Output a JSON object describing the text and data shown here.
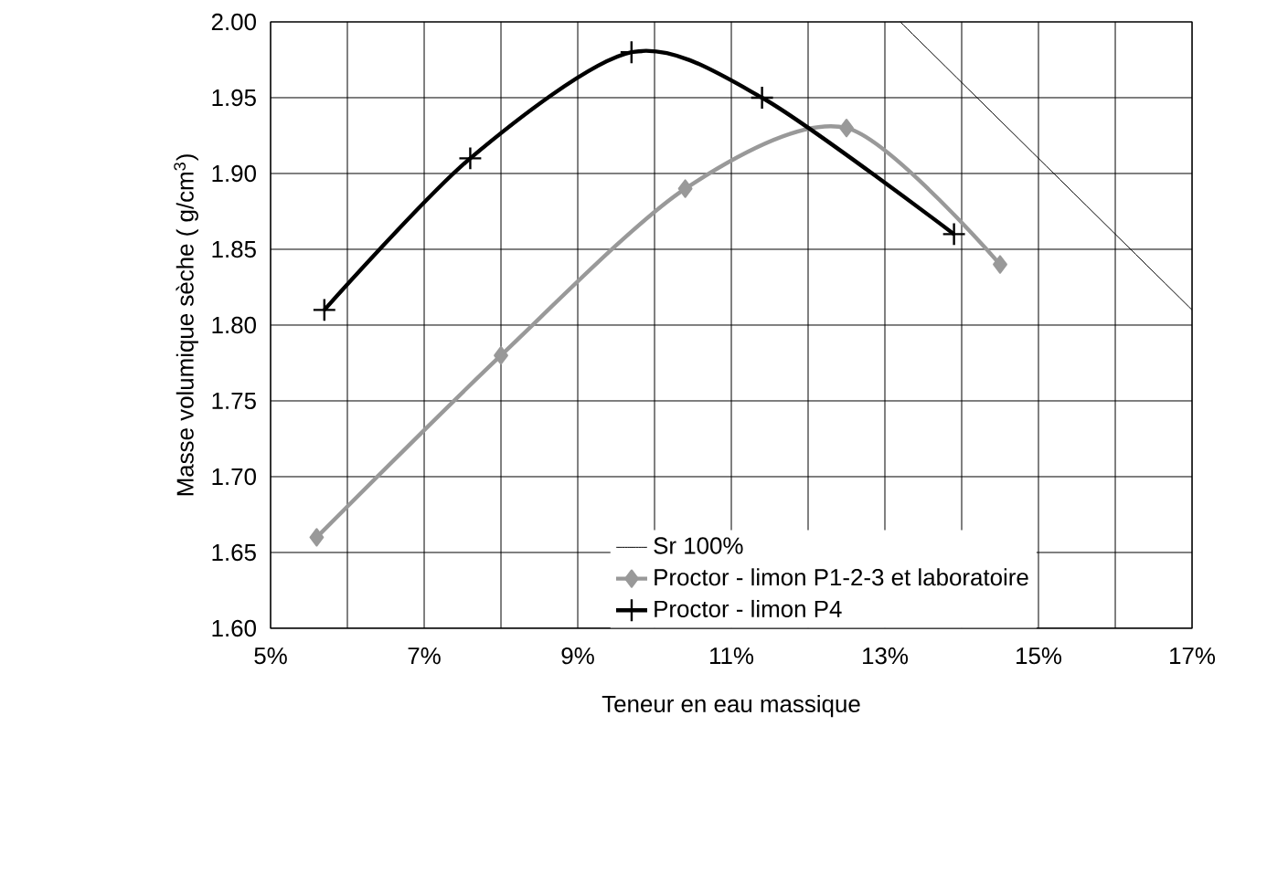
{
  "chart_data": {
    "type": "line",
    "xlabel": "Teneur en eau massique",
    "ylabel": "Masse volumique sèche ( g/cm$^{3}$)",
    "xlim": [
      5,
      17
    ],
    "ylim": [
      1.6,
      2.0
    ],
    "xticks": [
      {
        "value": 5,
        "label": "5%"
      },
      {
        "value": 7,
        "label": "7%"
      },
      {
        "value": 9,
        "label": "9%"
      },
      {
        "value": 11,
        "label": "11%"
      },
      {
        "value": 13,
        "label": "13%"
      },
      {
        "value": 15,
        "label": "15%"
      },
      {
        "value": 17,
        "label": "17%"
      }
    ],
    "yticks": [
      {
        "value": 1.6,
        "label": "1.60"
      },
      {
        "value": 1.65,
        "label": "1.65"
      },
      {
        "value": 1.7,
        "label": "1.70"
      },
      {
        "value": 1.75,
        "label": "1.75"
      },
      {
        "value": 1.8,
        "label": "1.80"
      },
      {
        "value": 1.85,
        "label": "1.85"
      },
      {
        "value": 1.9,
        "label": "1.90"
      },
      {
        "value": 1.95,
        "label": "1.95"
      },
      {
        "value": 2.0,
        "label": "2.00"
      }
    ],
    "grid": true,
    "legend": "bottom",
    "series": [
      {
        "name": "Sr 100%",
        "color": "#000000",
        "marker": "none",
        "x": [
          13.2,
          17
        ],
        "values": [
          2.0,
          1.81
        ]
      },
      {
        "name": "Proctor - limon P1-2-3 et laboratoire",
        "color": "#999999",
        "marker": "diamond",
        "x": [
          5.6,
          8.0,
          10.4,
          12.5,
          14.5
        ],
        "values": [
          1.66,
          1.78,
          1.89,
          1.93,
          1.84
        ]
      },
      {
        "name": "Proctor - limon P4",
        "color": "#000000",
        "marker": "cross",
        "x": [
          5.7,
          7.6,
          9.7,
          11.4,
          13.9
        ],
        "values": [
          1.81,
          1.91,
          1.98,
          1.95,
          1.86
        ]
      }
    ]
  }
}
